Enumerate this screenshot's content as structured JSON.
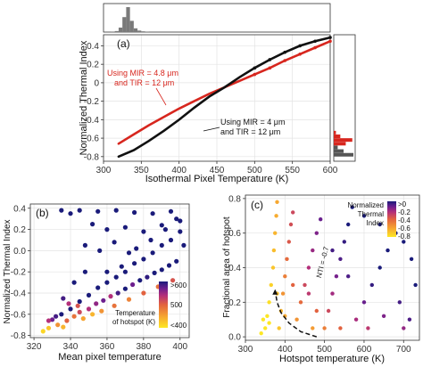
{
  "colors": {
    "red": "#d7261e",
    "black": "#111111",
    "hist_gray": "#7a7a7a",
    "hist_dark": "#555555",
    "colormap": [
      "#fde725",
      "#f6a432",
      "#e2623f",
      "#b32f7a",
      "#6d1f8e",
      "#1a1b7a"
    ]
  },
  "chart_data": [
    {
      "panel": "a",
      "type": "line",
      "panel_label": "(a)",
      "xlabel": "Isothermal Pixel Temperature (K)",
      "ylabel": "Normalized Thermal Index",
      "xlim": [
        300,
        600
      ],
      "ylim": [
        -0.85,
        0.52
      ],
      "x_ticks": [
        300,
        350,
        400,
        450,
        500,
        550,
        600
      ],
      "y_ticks": [
        0.4,
        0.2,
        0,
        -0.2,
        -0.4,
        -0.6,
        -0.8
      ],
      "y_tick_labels": [
        "0.4",
        "0.2",
        "0",
        "-0.2",
        "-0.4",
        "-0.6",
        "-0.8"
      ],
      "grid": true,
      "series": [
        {
          "label": "Using MIR = 4.8 μm and TIR = 12 μm",
          "label_lines": [
            "Using MIR = 4.8 μm",
            "and TIR = 12 μm"
          ],
          "color": "red",
          "x": [
            320,
            340,
            360,
            380,
            400,
            420,
            440,
            460,
            480,
            500,
            520,
            540,
            560,
            580,
            600
          ],
          "y": [
            -0.66,
            -0.56,
            -0.46,
            -0.37,
            -0.28,
            -0.2,
            -0.12,
            -0.05,
            0.02,
            0.09,
            0.16,
            0.24,
            0.31,
            0.38,
            0.45
          ]
        },
        {
          "label": "Using MIR = 4 μm and TIR = 12 μm",
          "label_lines": [
            "Using MIR = 4 μm",
            "and TIR = 12 μm"
          ],
          "color": "black",
          "x": [
            320,
            340,
            360,
            380,
            400,
            420,
            440,
            460,
            480,
            500,
            520,
            540,
            560,
            580,
            600
          ],
          "y": [
            -0.8,
            -0.73,
            -0.63,
            -0.52,
            -0.4,
            -0.27,
            -0.15,
            -0.05,
            0.06,
            0.16,
            0.25,
            0.33,
            0.4,
            0.45,
            0.49
          ]
        }
      ],
      "top_histogram": {
        "bin_width": 5,
        "bins": [
          310,
          315,
          320,
          325,
          330,
          335,
          340,
          345,
          350,
          355
        ],
        "counts": [
          2,
          4,
          18,
          60,
          100,
          45,
          15,
          6,
          3,
          1
        ]
      },
      "right_histogram": {
        "bins": [
          {
            "y": -0.78,
            "count": 90,
            "color": "black"
          },
          {
            "y": -0.74,
            "count": 45,
            "color": "black"
          },
          {
            "y": -0.7,
            "count": 18,
            "color": "black"
          },
          {
            "y": -0.66,
            "count": 55,
            "color": "red"
          },
          {
            "y": -0.62,
            "count": 85,
            "color": "red"
          },
          {
            "y": -0.58,
            "count": 30,
            "color": "red"
          },
          {
            "y": -0.54,
            "count": 10,
            "color": "red"
          }
        ]
      }
    },
    {
      "panel": "b",
      "type": "scatter",
      "panel_label": "(b)",
      "xlabel": "Mean pixel temperature",
      "ylabel": "Normalized Thermal Index",
      "xlim": [
        318,
        405
      ],
      "ylim": [
        -0.82,
        0.44
      ],
      "x_ticks": [
        320,
        340,
        360,
        380,
        400
      ],
      "y_ticks": [
        0.4,
        0.2,
        0,
        -0.2,
        -0.4,
        -0.6,
        -0.8
      ],
      "y_tick_labels": [
        "0.4",
        "0.2",
        "0.0",
        "-0.2",
        "-0.4",
        "-0.6",
        "-0.8"
      ],
      "grid": true,
      "legend": {
        "title_lines": [
          "Temperature",
          "of hotspot (K)"
        ],
        "ticks": [
          ">600",
          "500",
          "<400"
        ],
        "placement": "bottom-right"
      },
      "color_scale": [
        400,
        600
      ],
      "points": [
        [
          328,
          -0.73,
          420
        ],
        [
          333,
          -0.7,
          450
        ],
        [
          338,
          -0.66,
          480
        ],
        [
          342,
          -0.62,
          470
        ],
        [
          345,
          -0.58,
          500
        ],
        [
          350,
          -0.55,
          520
        ],
        [
          354,
          -0.5,
          540
        ],
        [
          358,
          -0.47,
          560
        ],
        [
          362,
          -0.43,
          520
        ],
        [
          366,
          -0.4,
          580
        ],
        [
          370,
          -0.36,
          600
        ],
        [
          374,
          -0.32,
          560
        ],
        [
          378,
          -0.28,
          610
        ],
        [
          382,
          -0.25,
          590
        ],
        [
          386,
          -0.21,
          620
        ],
        [
          390,
          -0.18,
          600
        ],
        [
          394,
          -0.14,
          640
        ],
        [
          398,
          -0.1,
          630
        ],
        [
          330,
          -0.65,
          560
        ],
        [
          335,
          -0.6,
          600
        ],
        [
          340,
          -0.55,
          610
        ],
        [
          345,
          -0.48,
          620
        ],
        [
          350,
          -0.42,
          640
        ],
        [
          355,
          -0.35,
          650
        ],
        [
          360,
          -0.3,
          620
        ],
        [
          365,
          -0.25,
          650
        ],
        [
          370,
          -0.2,
          660
        ],
        [
          375,
          -0.12,
          640
        ],
        [
          380,
          -0.08,
          650
        ],
        [
          385,
          -0.02,
          660
        ],
        [
          390,
          0.05,
          660
        ],
        [
          395,
          0.1,
          650
        ],
        [
          400,
          0.18,
          660
        ],
        [
          325,
          -0.76,
          410
        ],
        [
          336,
          -0.72,
          430
        ],
        [
          347,
          -0.64,
          440
        ],
        [
          352,
          -0.6,
          430
        ],
        [
          357,
          -0.57,
          450
        ],
        [
          364,
          -0.52,
          470
        ],
        [
          372,
          -0.46,
          460
        ],
        [
          380,
          -0.4,
          480
        ],
        [
          388,
          -0.34,
          470
        ],
        [
          396,
          -0.28,
          490
        ],
        [
          335,
          0.38,
          650
        ],
        [
          340,
          0.35,
          660
        ],
        [
          345,
          0.38,
          620
        ],
        [
          355,
          0.37,
          650
        ],
        [
          365,
          0.38,
          640
        ],
        [
          375,
          0.36,
          650
        ],
        [
          385,
          0.35,
          660
        ],
        [
          395,
          0.37,
          640
        ],
        [
          352,
          0.25,
          650
        ],
        [
          360,
          0.2,
          650
        ],
        [
          370,
          0.22,
          620
        ],
        [
          380,
          0.18,
          640
        ],
        [
          390,
          0.24,
          660
        ],
        [
          398,
          0.3,
          650
        ],
        [
          348,
          0.05,
          620
        ],
        [
          356,
          0.0,
          640
        ],
        [
          364,
          0.08,
          650
        ],
        [
          372,
          -0.02,
          620
        ],
        [
          342,
          -0.3,
          600
        ],
        [
          348,
          -0.2,
          640
        ],
        [
          336,
          -0.45,
          580
        ],
        [
          339,
          -0.5,
          520
        ],
        [
          344,
          -0.52,
          490
        ],
        [
          360,
          -0.2,
          610
        ],
        [
          368,
          -0.15,
          600
        ],
        [
          376,
          0.02,
          640
        ],
        [
          384,
          0.1,
          650
        ],
        [
          392,
          0.2,
          640
        ],
        [
          400,
          0.28,
          660
        ],
        [
          402,
          0.05,
          640
        ],
        [
          328,
          -0.66,
          520
        ],
        [
          332,
          -0.62,
          580
        ]
      ]
    },
    {
      "panel": "c",
      "type": "scatter",
      "panel_label": "(c)",
      "xlabel": "Hotspot temperature (K)",
      "ylabel": "Fractional area of hotspot",
      "xlim": [
        300,
        740
      ],
      "ylim": [
        -0.02,
        0.82
      ],
      "x_ticks": [
        300,
        400,
        500,
        600,
        700
      ],
      "y_ticks": [
        0.0,
        0.2,
        0.4,
        0.6,
        0.8
      ],
      "y_tick_labels": [
        "0.0",
        "0.2",
        "0.4",
        "0.6",
        "0.8"
      ],
      "grid": true,
      "annotation": "NTI = -0.7",
      "contour": {
        "x": [
          480,
          440,
          410,
          390,
          380,
          375
        ],
        "y": [
          0.0,
          0.03,
          0.08,
          0.14,
          0.2,
          0.27
        ]
      },
      "legend": {
        "title_lines": [
          "Normalized",
          "Thermal",
          "Index"
        ],
        "ticks": [
          ">0",
          "-0.2",
          "-0.4",
          "-0.6",
          "-0.8"
        ],
        "placement": "top-right"
      },
      "color_scale": [
        -0.8,
        0
      ],
      "points": [
        [
          340,
          0.02,
          -0.85
        ],
        [
          350,
          0.05,
          -0.82
        ],
        [
          355,
          0.12,
          -0.8
        ],
        [
          360,
          0.2,
          -0.78
        ],
        [
          365,
          0.3,
          -0.75
        ],
        [
          370,
          0.4,
          -0.72
        ],
        [
          372,
          0.5,
          -0.7
        ],
        [
          375,
          0.6,
          -0.68
        ],
        [
          378,
          0.7,
          -0.66
        ],
        [
          380,
          0.78,
          -0.65
        ],
        [
          385,
          0.05,
          -0.72
        ],
        [
          390,
          0.15,
          -0.68
        ],
        [
          395,
          0.25,
          -0.6
        ],
        [
          400,
          0.35,
          -0.55
        ],
        [
          405,
          0.45,
          -0.5
        ],
        [
          410,
          0.55,
          -0.45
        ],
        [
          415,
          0.65,
          -0.42
        ],
        [
          420,
          0.72,
          -0.4
        ],
        [
          430,
          0.1,
          -0.6
        ],
        [
          440,
          0.2,
          -0.5
        ],
        [
          450,
          0.3,
          -0.4
        ],
        [
          460,
          0.4,
          -0.32
        ],
        [
          470,
          0.5,
          -0.26
        ],
        [
          480,
          0.6,
          -0.2
        ],
        [
          490,
          0.68,
          -0.15
        ],
        [
          500,
          0.05,
          -0.55
        ],
        [
          510,
          0.15,
          -0.4
        ],
        [
          520,
          0.25,
          -0.28
        ],
        [
          530,
          0.35,
          -0.18
        ],
        [
          540,
          0.45,
          -0.1
        ],
        [
          550,
          0.55,
          -0.05
        ],
        [
          560,
          0.65,
          0.0
        ],
        [
          570,
          0.75,
          0.02
        ],
        [
          580,
          0.1,
          -0.3
        ],
        [
          600,
          0.2,
          -0.15
        ],
        [
          620,
          0.3,
          -0.05
        ],
        [
          640,
          0.4,
          0.0
        ],
        [
          660,
          0.5,
          0.05
        ],
        [
          680,
          0.6,
          0.08
        ],
        [
          700,
          0.55,
          0.1
        ],
        [
          720,
          0.45,
          0.1
        ],
        [
          610,
          0.05,
          -0.35
        ],
        [
          650,
          0.12,
          -0.2
        ],
        [
          690,
          0.2,
          -0.08
        ],
        [
          715,
          0.1,
          -0.1
        ],
        [
          730,
          0.3,
          0.05
        ],
        [
          700,
          0.05,
          -0.25
        ],
        [
          640,
          0.65,
          0.05
        ],
        [
          600,
          0.7,
          0.02
        ],
        [
          560,
          0.35,
          -0.1
        ],
        [
          520,
          0.5,
          -0.08
        ],
        [
          460,
          0.25,
          -0.35
        ],
        [
          420,
          0.3,
          -0.48
        ],
        [
          400,
          0.12,
          -0.65
        ],
        [
          380,
          0.25,
          -0.7
        ],
        [
          360,
          0.08,
          -0.8
        ],
        [
          345,
          0.1,
          -0.82
        ],
        [
          470,
          0.05,
          -0.62
        ],
        [
          540,
          0.05,
          -0.48
        ],
        [
          480,
          0.15,
          -0.48
        ]
      ]
    }
  ]
}
